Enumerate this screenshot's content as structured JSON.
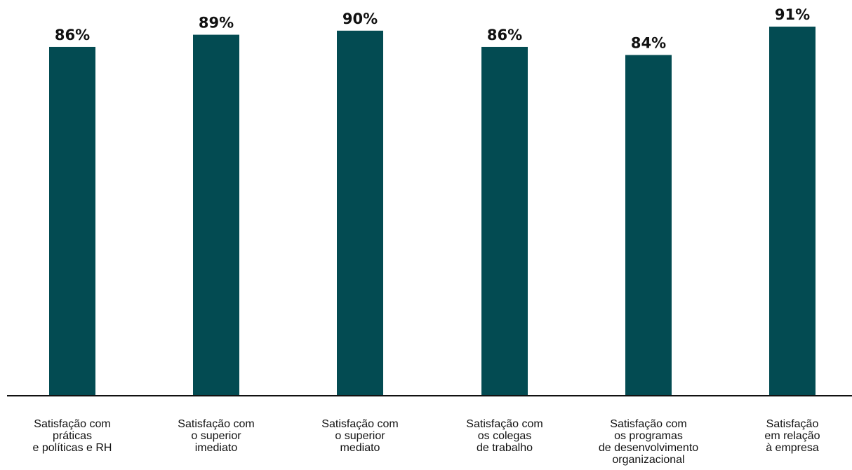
{
  "chart_data": {
    "type": "bar",
    "categories": [
      [
        "Satisfação com",
        "práticas",
        "e políticas e RH"
      ],
      [
        "Satisfação com",
        "o superior",
        "imediato"
      ],
      [
        "Satisfação com",
        "o superior",
        "mediato"
      ],
      [
        "Satisfação com",
        "os colegas",
        "de trabalho"
      ],
      [
        "Satisfação com",
        "os programas",
        "de desenvolvimento",
        "organizacional"
      ],
      [
        "Satisfação",
        "em relação",
        "à empresa"
      ]
    ],
    "values": [
      86,
      89,
      90,
      86,
      84,
      91
    ],
    "value_labels": [
      "86%",
      "89%",
      "90%",
      "86%",
      "84%",
      "91%"
    ],
    "value_unit": "%",
    "ylim": [
      0,
      91
    ],
    "grid": false,
    "bar_color": "#034b52",
    "axis_color": "#111111"
  }
}
